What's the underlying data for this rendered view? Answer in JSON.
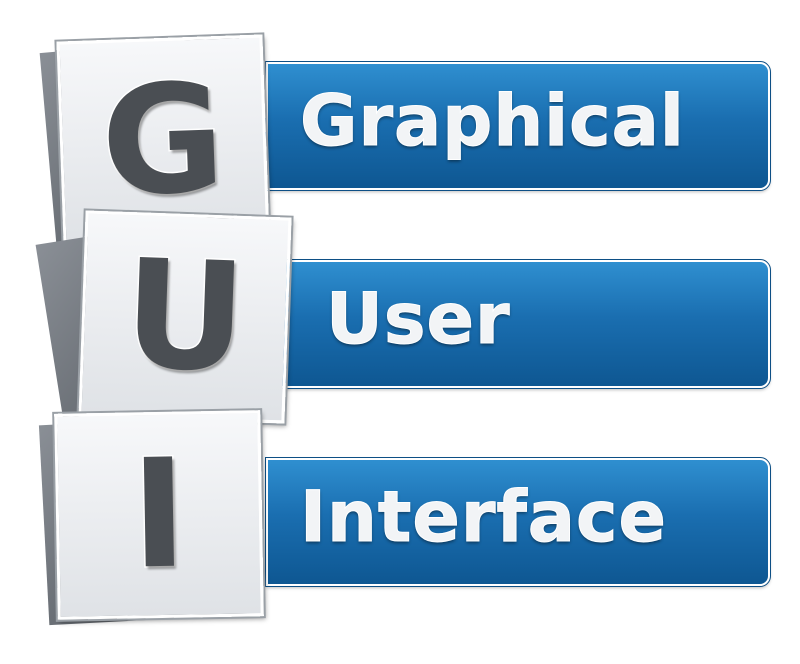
{
  "letters": [
    "G",
    "U",
    "I"
  ],
  "words": [
    "Graphical",
    "User",
    "Interface"
  ],
  "colors": {
    "bar_top": "#2f8fd0",
    "bar_bottom": "#0e5792",
    "tile_face": "#eceef1",
    "letter": "#4a4e53",
    "tile_back": "#5a5f65"
  }
}
